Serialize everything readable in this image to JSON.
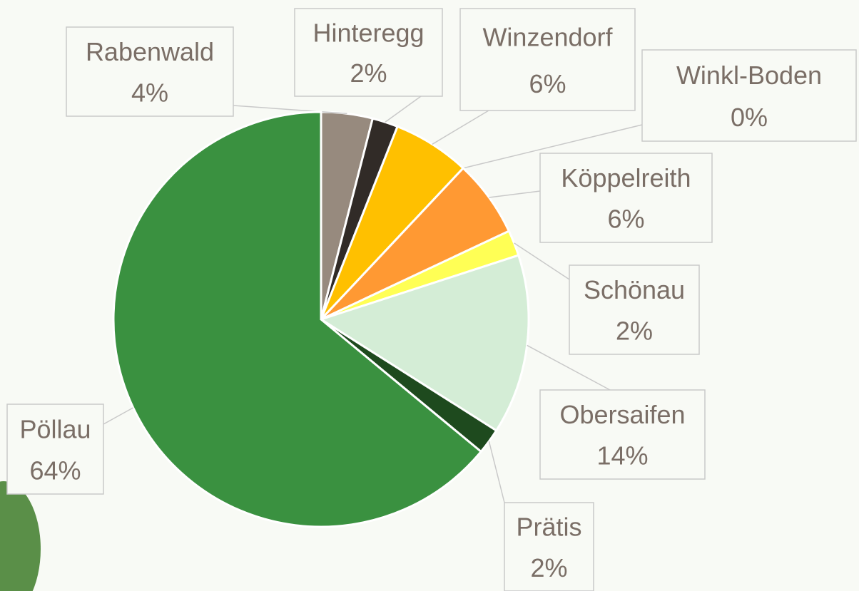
{
  "chart_data": {
    "type": "pie",
    "categories": [
      "Rabenwald",
      "Hinteregg",
      "Winzendorf",
      "Winkl-Boden",
      "Köppelreith",
      "Schönau",
      "Obersaifen",
      "Prätis",
      "Pöllau"
    ],
    "values": [
      4,
      2,
      6,
      0,
      6,
      2,
      14,
      2,
      64
    ],
    "value_labels": [
      "4%",
      "2%",
      "6%",
      "0%",
      "6%",
      "2%",
      "14%",
      "2%",
      "64%"
    ],
    "colors": [
      "#978a7e",
      "#312b27",
      "#ffc000",
      "#d9d9d9",
      "#ff9933",
      "#ffff55",
      "#d4edd6",
      "#1e4a1e",
      "#3a9140"
    ]
  }
}
